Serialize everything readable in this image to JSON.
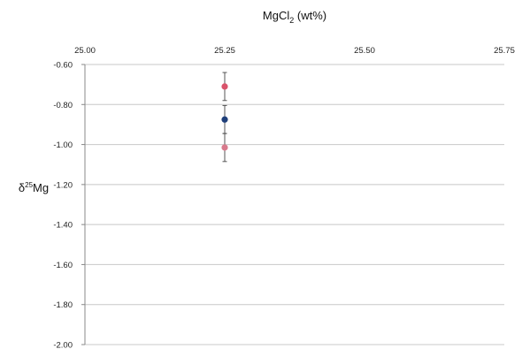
{
  "chart_data": {
    "type": "scatter",
    "title": "",
    "xlabel": {
      "base": "MgCl",
      "sub": "2",
      "rest": " (wt%)"
    },
    "ylabel": {
      "prefix": "δ",
      "sup": "25",
      "base": "Mg"
    },
    "x_axis_position": "top",
    "xlim": [
      25.0,
      25.75
    ],
    "ylim": [
      -2.0,
      -0.6
    ],
    "x_ticks": [
      "25.00",
      "25.25",
      "25.50",
      "25.75"
    ],
    "y_ticks": [
      "-0.60",
      "-0.80",
      "-1.00",
      "-1.20",
      "-1.40",
      "-1.60",
      "-1.80",
      "-2.00"
    ],
    "grid": {
      "horizontal": true,
      "vertical": false
    },
    "series": [
      {
        "color": "#d9536b",
        "points": [
          {
            "x": 25.25,
            "y": -0.71,
            "yerr": 0.07
          }
        ]
      },
      {
        "color": "#1f3f7a",
        "points": [
          {
            "x": 25.25,
            "y": -0.875,
            "yerr": 0.07
          }
        ]
      },
      {
        "color": "#d87a8c",
        "points": [
          {
            "x": 25.25,
            "y": -1.015,
            "yerr": 0.07
          }
        ]
      }
    ]
  }
}
